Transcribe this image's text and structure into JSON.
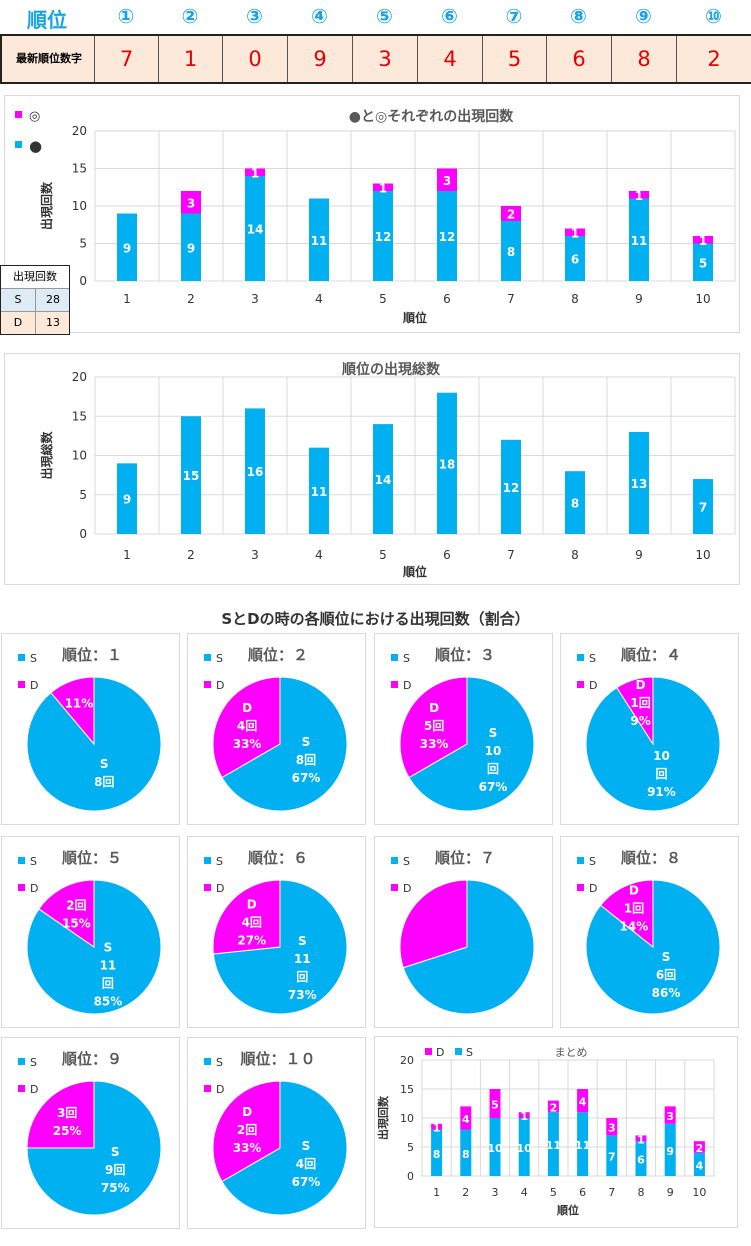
{
  "header": {
    "rank_label": "順位",
    "circled": [
      "①",
      "②",
      "③",
      "④",
      "⑤",
      "⑥",
      "⑦",
      "⑧",
      "⑨",
      "⑩"
    ],
    "latest_label": "最新順位数字",
    "latest_digits": [
      "7",
      "1",
      "0",
      "9",
      "3",
      "4",
      "5",
      "6",
      "8",
      "2"
    ]
  },
  "side_table": {
    "title": "出現回数",
    "rows": [
      {
        "label": "S",
        "value": "28"
      },
      {
        "label": "D",
        "value": "13"
      }
    ]
  },
  "colors": {
    "cyan": "#00b0f0",
    "magenta": "#ff00ff",
    "grid": "#d9d9d9",
    "text": "#595959"
  },
  "chart_data": [
    {
      "type": "bar",
      "stacked": true,
      "title": "●と◎それぞれの出現回数",
      "xlabel": "順位",
      "ylabel": "出現回数",
      "ylim": [
        0,
        20
      ],
      "yticks": [
        "0",
        "5",
        "10",
        "15",
        "20"
      ],
      "categories": [
        "1",
        "2",
        "3",
        "4",
        "5",
        "6",
        "7",
        "8",
        "9",
        "10"
      ],
      "legend": [
        "◎",
        "●"
      ],
      "series": [
        {
          "name": "●",
          "color": "#00b0f0",
          "values": [
            9,
            9,
            14,
            11,
            12,
            12,
            8,
            6,
            11,
            5
          ]
        },
        {
          "name": "◎",
          "color": "#ff00ff",
          "values": [
            0,
            3,
            1,
            0,
            1,
            3,
            2,
            1,
            1,
            1
          ]
        }
      ]
    },
    {
      "type": "bar",
      "stacked": false,
      "title": "順位の出現総数",
      "xlabel": "順位",
      "ylabel": "出現総数",
      "ylim": [
        0,
        20
      ],
      "yticks": [
        "0",
        "5",
        "10",
        "15",
        "20"
      ],
      "categories": [
        "1",
        "2",
        "3",
        "4",
        "5",
        "6",
        "7",
        "8",
        "9",
        "10"
      ],
      "series": [
        {
          "name": "出現総数",
          "color": "#00b0f0",
          "values": [
            9,
            15,
            16,
            11,
            14,
            18,
            12,
            8,
            13,
            7
          ]
        }
      ]
    },
    {
      "type": "pie",
      "section_title": "SとDの時の各順位における出現回数（割合）",
      "legend": [
        "S",
        "D"
      ],
      "pies": [
        {
          "title": "順位：１",
          "S": 8,
          "D": 1,
          "labels": [
            [
              "S",
              "8回"
            ],
            [
              "11%"
            ]
          ]
        },
        {
          "title": "順位：２",
          "S": 8,
          "D": 4,
          "labels": [
            [
              "S",
              "8回",
              "67%"
            ],
            [
              "D",
              "4回",
              "33%"
            ]
          ]
        },
        {
          "title": "順位：３",
          "S": 10,
          "D": 5,
          "labels": [
            [
              "S",
              "10",
              "回",
              "67%"
            ],
            [
              "D",
              "5回",
              "33%"
            ]
          ]
        },
        {
          "title": "順位：４",
          "S": 10,
          "D": 1,
          "labels": [
            [
              "10",
              "回",
              "91%"
            ],
            [
              "D",
              "1回",
              "9%"
            ]
          ]
        },
        {
          "title": "順位：５",
          "S": 11,
          "D": 2,
          "labels": [
            [
              "S",
              "11",
              "回",
              "85%"
            ],
            [
              "2回",
              "15%"
            ]
          ]
        },
        {
          "title": "順位：６",
          "S": 11,
          "D": 4,
          "labels": [
            [
              "S",
              "11",
              "回",
              "73%"
            ],
            [
              "D",
              "4回",
              "27%"
            ]
          ]
        },
        {
          "title": "順位：７",
          "S": 7,
          "D": 3,
          "labels": [
            [],
            []
          ]
        },
        {
          "title": "順位：８",
          "S": 6,
          "D": 1,
          "labels": [
            [
              "S",
              "6回",
              "86%"
            ],
            [
              "D",
              "1回",
              "14%"
            ]
          ]
        },
        {
          "title": "順位：９",
          "S": 9,
          "D": 3,
          "labels": [
            [
              "S",
              "9回",
              "75%"
            ],
            [
              "3回",
              "25%"
            ]
          ]
        },
        {
          "title": "順位：１０",
          "S": 4,
          "D": 2,
          "labels": [
            [
              "S",
              "4回",
              "67%"
            ],
            [
              "D",
              "2回",
              "33%"
            ]
          ]
        }
      ]
    },
    {
      "type": "bar",
      "stacked": true,
      "title": "まとめ",
      "xlabel": "順位",
      "ylabel": "出現回数",
      "ylim": [
        0,
        20
      ],
      "yticks": [
        "0",
        "5",
        "10",
        "15",
        "20"
      ],
      "categories": [
        "1",
        "2",
        "3",
        "4",
        "5",
        "6",
        "7",
        "8",
        "9",
        "10"
      ],
      "legend": [
        "D",
        "S"
      ],
      "series": [
        {
          "name": "S",
          "color": "#00b0f0",
          "values": [
            8,
            8,
            10,
            10,
            11,
            11,
            7,
            6,
            9,
            4
          ]
        },
        {
          "name": "D",
          "color": "#ff00ff",
          "values": [
            1,
            4,
            5,
            1,
            2,
            4,
            3,
            1,
            3,
            2
          ]
        }
      ]
    }
  ]
}
